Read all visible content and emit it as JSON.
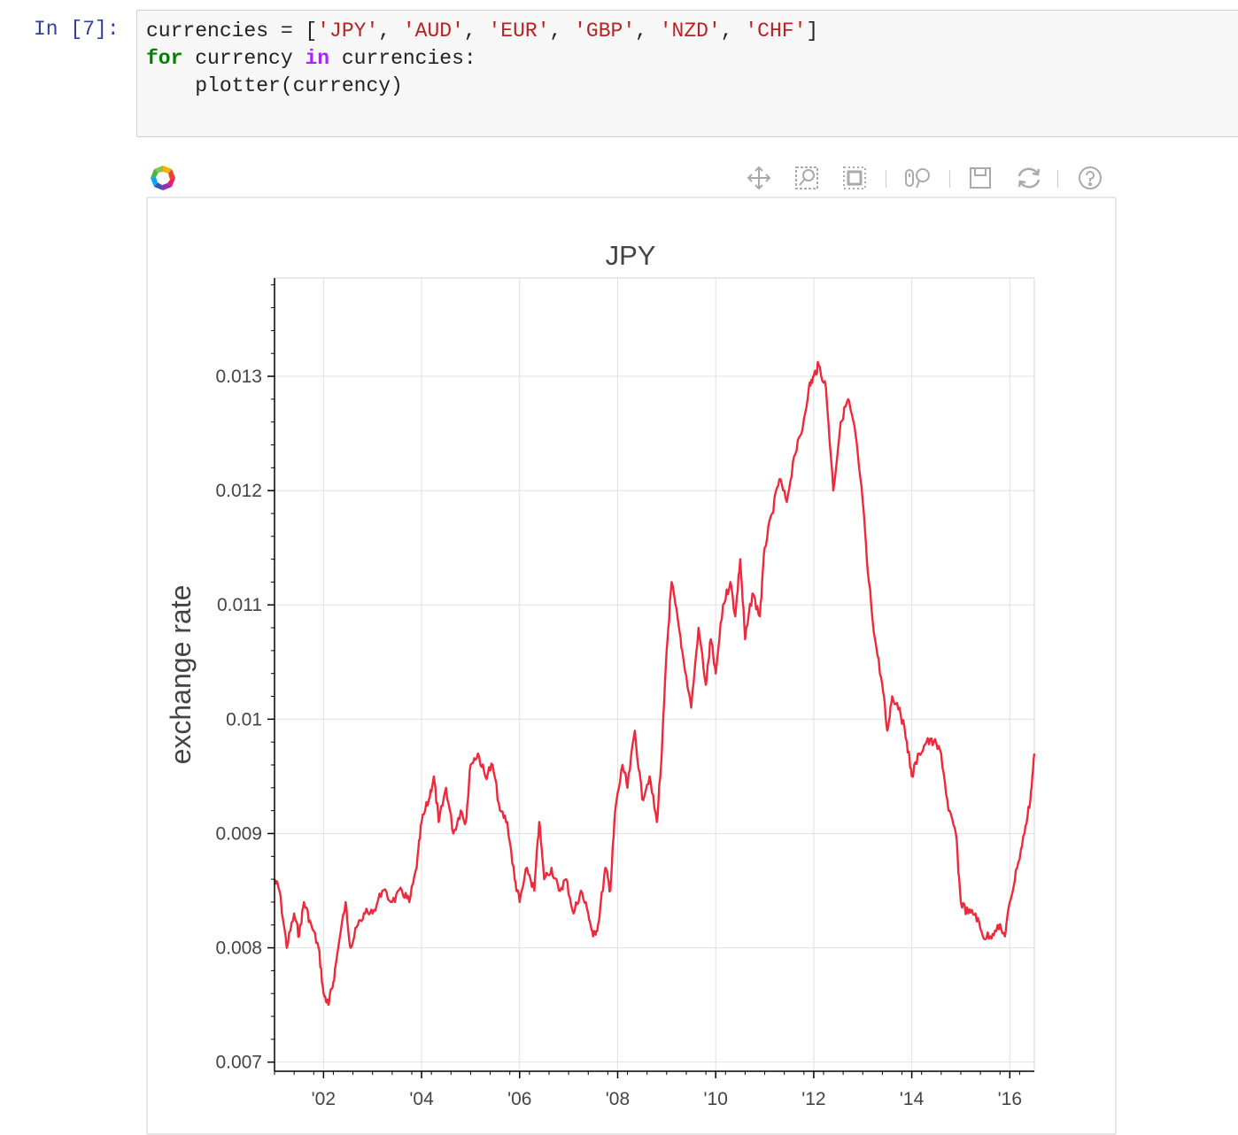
{
  "cell": {
    "prompt": "In [7]:",
    "line1": {
      "var": "currencies = [",
      "items": [
        "'JPY'",
        "'AUD'",
        "'EUR'",
        "'GBP'",
        "'NZD'",
        "'CHF'"
      ],
      "close": "]"
    },
    "line2": {
      "kw_for": "for",
      "mid": " currency ",
      "kw_in": "in",
      "rest": " currencies:"
    },
    "line3": "    plotter(currency)"
  },
  "toolbar": {
    "tools": [
      "pan-icon",
      "box-zoom-icon",
      "resize-icon",
      "wheel-zoom-icon",
      "save-icon",
      "reset-icon",
      "help-icon"
    ],
    "active_color": "#26aae1",
    "icon_color": "#aaaaaa"
  },
  "chart_data": {
    "type": "line",
    "title": "JPY",
    "xlabel": "",
    "ylabel": "exchange rate",
    "line_color": "#f0283c",
    "grid": true,
    "xlim": [
      2001.0,
      2016.5
    ],
    "ylim": [
      0.00692,
      0.01386
    ],
    "x_ticks": [
      2002,
      2004,
      2006,
      2008,
      2010,
      2012,
      2014,
      2016
    ],
    "x_tick_labels": [
      "'02",
      "'04",
      "'06",
      "'08",
      "'10",
      "'12",
      "'14",
      "'16"
    ],
    "y_ticks": [
      0.007,
      0.008,
      0.009,
      0.01,
      0.011,
      0.012,
      0.013
    ],
    "y_tick_labels": [
      "0.007",
      "0.008",
      "0.009",
      "0.01",
      "0.011",
      "0.012",
      "0.013"
    ],
    "series": [
      {
        "x": [
          2001.0,
          2001.1,
          2001.25,
          2001.4,
          2001.5,
          2001.6,
          2001.75,
          2001.9,
          2002.0,
          2002.1,
          2002.2,
          2002.3,
          2002.45,
          2002.55,
          2002.7,
          2002.85,
          2003.0,
          2003.2,
          2003.4,
          2003.6,
          2003.75,
          2003.9,
          2004.0,
          2004.15,
          2004.25,
          2004.35,
          2004.5,
          2004.65,
          2004.8,
          2004.9,
          2005.0,
          2005.15,
          2005.3,
          2005.45,
          2005.6,
          2005.75,
          2005.9,
          2006.0,
          2006.15,
          2006.3,
          2006.4,
          2006.5,
          2006.65,
          2006.8,
          2006.95,
          2007.1,
          2007.25,
          2007.4,
          2007.5,
          2007.6,
          2007.75,
          2007.85,
          2007.95,
          2008.1,
          2008.2,
          2008.35,
          2008.5,
          2008.65,
          2008.8,
          2008.9,
          2009.0,
          2009.1,
          2009.25,
          2009.35,
          2009.5,
          2009.65,
          2009.8,
          2009.9,
          2010.0,
          2010.15,
          2010.3,
          2010.4,
          2010.5,
          2010.6,
          2010.75,
          2010.9,
          2011.0,
          2011.15,
          2011.3,
          2011.45,
          2011.6,
          2011.75,
          2011.9,
          2012.0,
          2012.1,
          2012.25,
          2012.4,
          2012.55,
          2012.7,
          2012.85,
          2013.0,
          2013.1,
          2013.25,
          2013.4,
          2013.5,
          2013.6,
          2013.75,
          2013.9,
          2014.0,
          2014.15,
          2014.3,
          2014.45,
          2014.6,
          2014.75,
          2014.9,
          2015.0,
          2015.15,
          2015.3,
          2015.45,
          2015.6,
          2015.75,
          2015.9,
          2016.0,
          2016.15,
          2016.3,
          2016.42,
          2016.5
        ],
        "y": [
          0.0086,
          0.0085,
          0.008,
          0.0083,
          0.0081,
          0.0084,
          0.0082,
          0.008,
          0.0076,
          0.0075,
          0.0077,
          0.008,
          0.0084,
          0.008,
          0.0082,
          0.0083,
          0.0083,
          0.0085,
          0.0084,
          0.0085,
          0.0084,
          0.0087,
          0.0091,
          0.0093,
          0.0095,
          0.0091,
          0.0094,
          0.009,
          0.0092,
          0.0091,
          0.0096,
          0.0097,
          0.0095,
          0.0096,
          0.0092,
          0.0091,
          0.0086,
          0.0084,
          0.0087,
          0.0085,
          0.0091,
          0.0086,
          0.0087,
          0.0085,
          0.0086,
          0.0083,
          0.0085,
          0.0083,
          0.0081,
          0.0082,
          0.0087,
          0.0085,
          0.0092,
          0.0096,
          0.0094,
          0.0099,
          0.0093,
          0.0095,
          0.0091,
          0.0097,
          0.0106,
          0.0112,
          0.0108,
          0.0105,
          0.0101,
          0.0108,
          0.0103,
          0.0107,
          0.0104,
          0.011,
          0.0112,
          0.0109,
          0.0114,
          0.0107,
          0.0111,
          0.0109,
          0.0115,
          0.0118,
          0.0121,
          0.0119,
          0.0123,
          0.0125,
          0.0129,
          0.013,
          0.0131,
          0.0129,
          0.012,
          0.0126,
          0.0128,
          0.0125,
          0.0119,
          0.0113,
          0.0107,
          0.0103,
          0.0099,
          0.0102,
          0.0101,
          0.0098,
          0.0095,
          0.0097,
          0.0098,
          0.0098,
          0.0097,
          0.0092,
          0.009,
          0.0084,
          0.0083,
          0.0083,
          0.0081,
          0.0081,
          0.0082,
          0.0081,
          0.0084,
          0.0087,
          0.009,
          0.0093,
          0.0097
        ]
      }
    ]
  }
}
